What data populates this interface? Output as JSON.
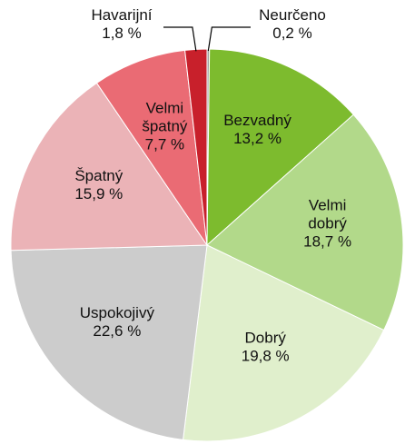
{
  "chart_data": {
    "type": "pie",
    "categories": [
      "Neurčeno",
      "Bezvadný",
      "Velmi dobrý",
      "Dobrý",
      "Uspokojivý",
      "Špatný",
      "Velmi špatný",
      "Havarijní"
    ],
    "values": [
      0.2,
      13.2,
      18.7,
      19.8,
      22.6,
      15.9,
      7.7,
      1.8
    ],
    "value_labels": [
      "0,2 %",
      "13,2 %",
      "18,7 %",
      "19,8 %",
      "22,6 %",
      "15,9 %",
      "7,7 %",
      "1,8 %"
    ],
    "colors": [
      "#a0a0a0",
      "#7dbb2e",
      "#b2d98a",
      "#e0efcc",
      "#cccccc",
      "#ebb3b7",
      "#ea6b74",
      "#c8202b"
    ]
  }
}
